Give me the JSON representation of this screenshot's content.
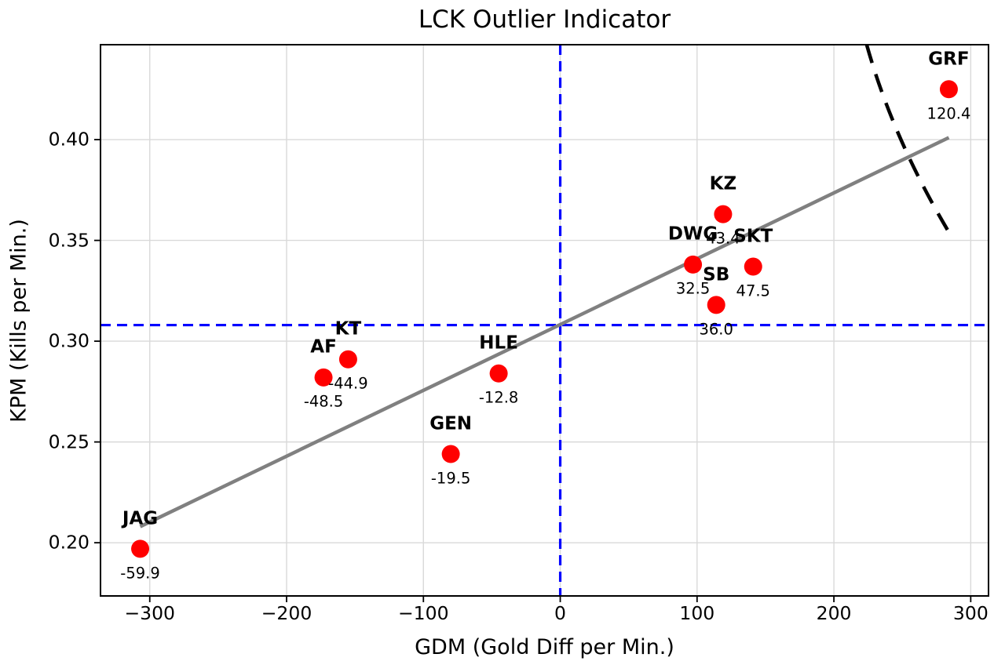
{
  "title": "LCK Outlier Indicator",
  "x_axis_label": "GDM (Gold Diff per Min.)",
  "y_axis_label": "KPM (Kills per Min.)",
  "colors": {
    "point": "#ff0000",
    "mean_line": "#0000ff",
    "trend_line": "#808080",
    "boundary": "#000000",
    "grid": "#d9d9d9",
    "spine": "#000000",
    "text": "#000000",
    "background": "#ffffff"
  },
  "chart_data": {
    "type": "scatter",
    "title": "LCK Outlier Indicator",
    "xlabel": "GDM (Gold Diff per Min.)",
    "ylabel": "KPM (Kills per Min.)",
    "xlim": [
      -336,
      313
    ],
    "ylim": [
      0.1736,
      0.4471
    ],
    "xticks": [
      -300,
      -200,
      -100,
      0,
      100,
      200,
      300
    ],
    "yticks": [
      0.2,
      0.25,
      0.3,
      0.35,
      0.4
    ],
    "grid": true,
    "points": [
      {
        "team": "JAG",
        "x": -307,
        "y": 0.197,
        "annotation": "-59.9"
      },
      {
        "team": "AF",
        "x": -173,
        "y": 0.282,
        "annotation": "-48.5"
      },
      {
        "team": "KT",
        "x": -155,
        "y": 0.291,
        "annotation": "-44.9"
      },
      {
        "team": "GEN",
        "x": -80,
        "y": 0.244,
        "annotation": "-19.5"
      },
      {
        "team": "HLE",
        "x": -45,
        "y": 0.284,
        "annotation": "-12.8"
      },
      {
        "team": "DWG",
        "x": 97,
        "y": 0.338,
        "annotation": "32.5"
      },
      {
        "team": "SB",
        "x": 114,
        "y": 0.318,
        "annotation": "36.0"
      },
      {
        "team": "KZ",
        "x": 119,
        "y": 0.363,
        "annotation": "43.4"
      },
      {
        "team": "SKT",
        "x": 141,
        "y": 0.337,
        "annotation": "47.5"
      },
      {
        "team": "GRF",
        "x": 284,
        "y": 0.425,
        "annotation": "120.4"
      }
    ],
    "mean_x": 0,
    "mean_y": 0.308,
    "trend_line": {
      "x1": -307,
      "y1": 0.208,
      "x2": 284,
      "y2": 0.401
    },
    "boundary_arc": {
      "p0": [
        224,
        0.447
      ],
      "c": [
        243.5,
        0.4
      ],
      "p1": [
        285,
        0.353
      ]
    },
    "legend": null
  }
}
